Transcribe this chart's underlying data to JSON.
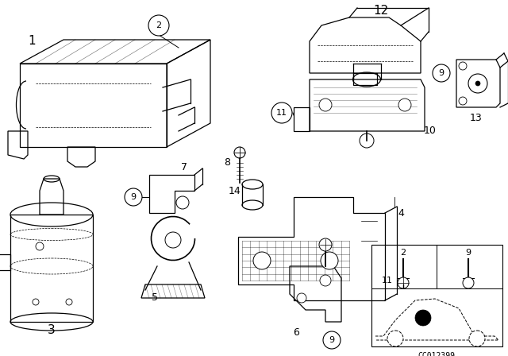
{
  "background_color": "#ffffff",
  "line_color": "#000000",
  "diagram_code": "CC012399",
  "fig_w": 6.4,
  "fig_h": 4.48,
  "dpi": 100
}
